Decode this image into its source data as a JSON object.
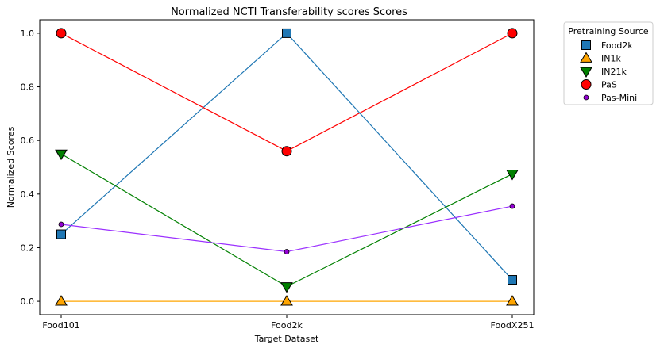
{
  "chart_data": {
    "type": "line",
    "title": "Normalized NCTI Transferability scores Scores",
    "xlabel": "Target Dataset",
    "ylabel": "Normalized Scores",
    "categories": [
      "Food101",
      "Food2k",
      "FoodX251"
    ],
    "ylim": [
      -0.05,
      1.05
    ],
    "yticks": [
      "0.0",
      "0.2",
      "0.4",
      "0.6",
      "0.8",
      "1.0"
    ],
    "grid": false,
    "legend_title": "Pretraining Source",
    "legend_position": "outside-top-right",
    "series": [
      {
        "name": "Food2k",
        "values": [
          0.25,
          1.0,
          0.08
        ],
        "color": "#1f77b4",
        "line_color": "#1f77b4",
        "marker": "square"
      },
      {
        "name": "IN1k",
        "values": [
          0.0,
          0.0,
          0.0
        ],
        "color": "#ffa500",
        "line_color": "#ffa500",
        "marker": "triangle-up"
      },
      {
        "name": "IN21k",
        "values": [
          0.55,
          0.055,
          0.475
        ],
        "color": "#008000",
        "line_color": "#008000",
        "marker": "triangle-down"
      },
      {
        "name": "PaS",
        "values": [
          1.0,
          0.56,
          1.0
        ],
        "color": "#ff0000",
        "line_color": "#ff0000",
        "marker": "circle"
      },
      {
        "name": "Pas-Mini",
        "values": [
          0.287,
          0.185,
          0.355
        ],
        "color": "#9400d3",
        "line_color": "#9b30ff",
        "marker": "small-circle"
      }
    ]
  }
}
